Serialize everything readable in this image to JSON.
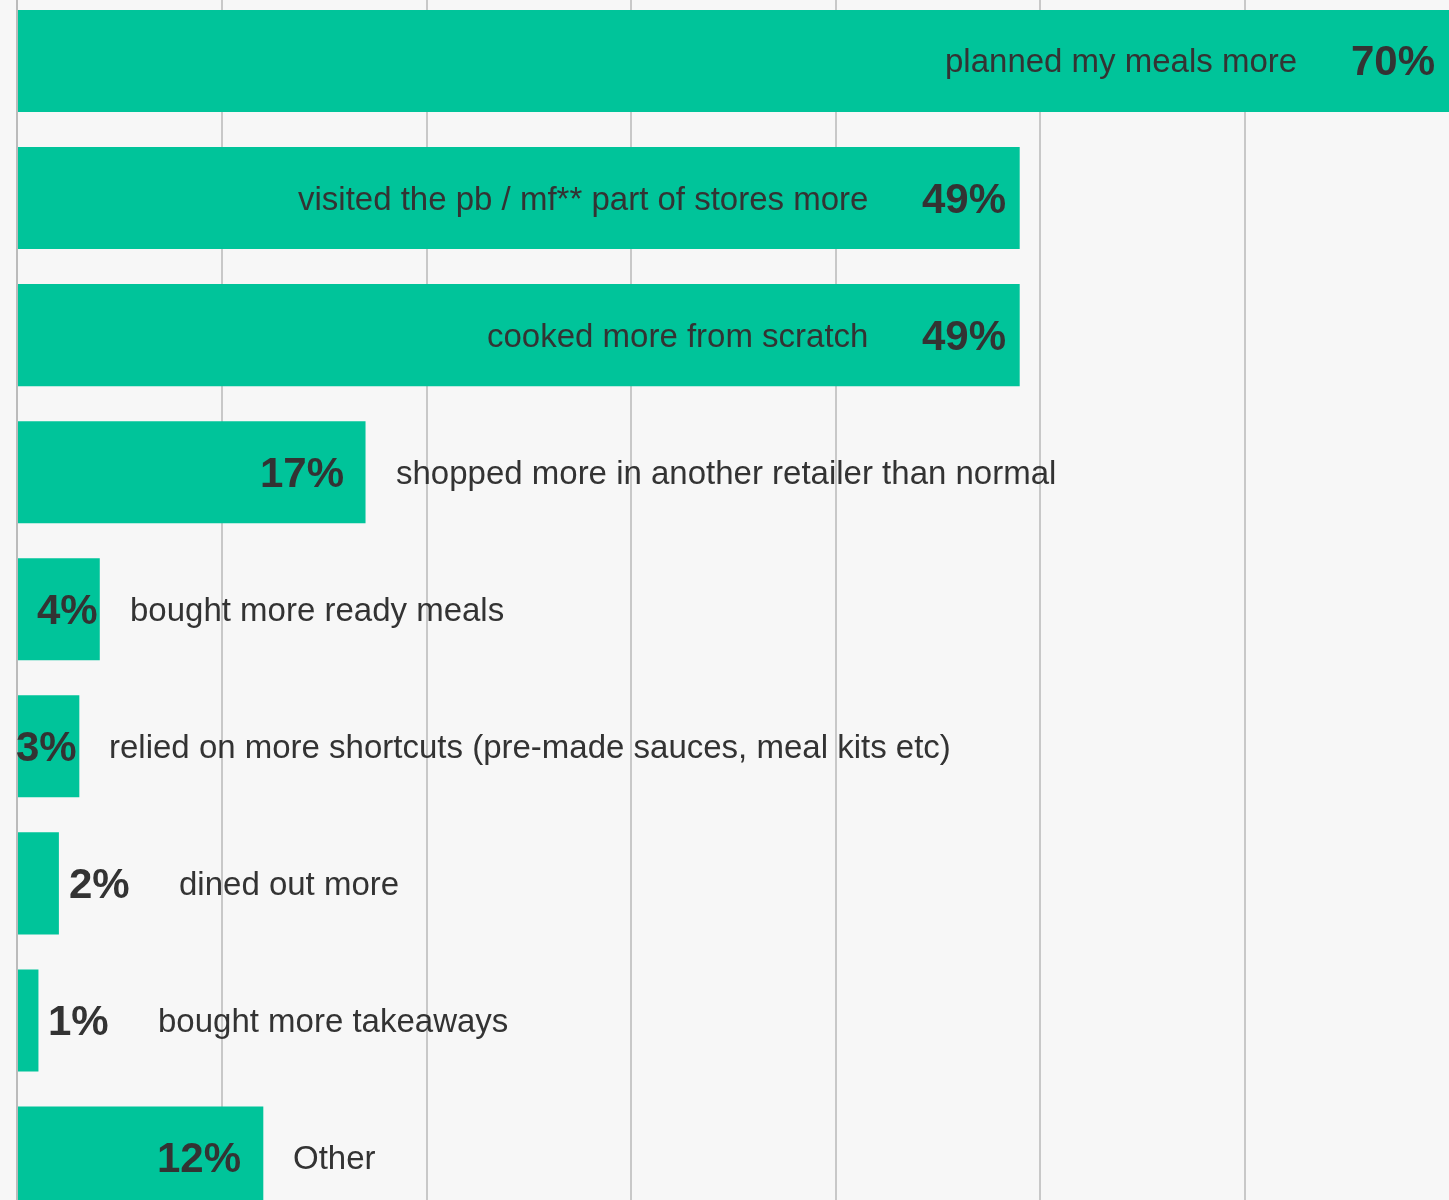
{
  "chart_data": {
    "type": "bar",
    "orientation": "horizontal",
    "categories": [
      "planned my meals more",
      "visited the pb / mf** part of stores more",
      "cooked more from scratch",
      "shopped more in another retailer than normal",
      "bought more ready meals",
      "relied on more shortcuts (pre-made sauces, meal kits etc)",
      "dined out more",
      "bought more takeaways",
      "Other"
    ],
    "values": [
      70,
      49,
      49,
      17,
      4,
      3,
      2,
      1,
      12
    ],
    "value_labels": [
      "70%",
      "49%",
      "49%",
      "17%",
      "4%",
      "3%",
      "2%",
      "1%",
      "12%"
    ],
    "color": "#00c49a",
    "xlim": [
      0,
      70
    ],
    "xticks": [
      {
        "value": 10,
        "label": null
      },
      {
        "value": 20,
        "label": null
      },
      {
        "value": 30,
        "label": null
      },
      {
        "value": 40,
        "label": null
      },
      {
        "value": 50,
        "label": null
      },
      {
        "value": 60,
        "label": null
      }
    ],
    "grid": "x"
  }
}
